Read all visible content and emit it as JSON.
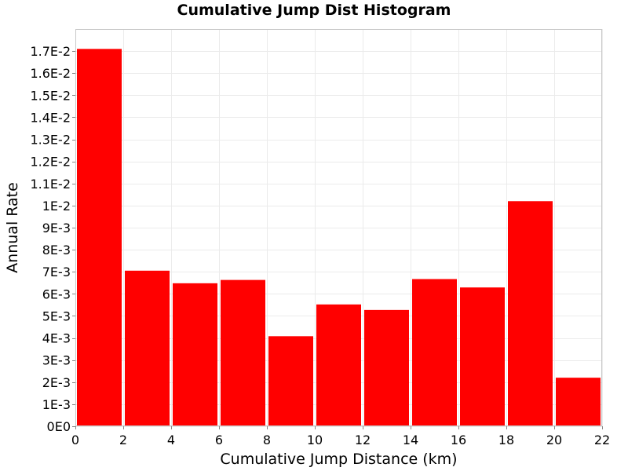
{
  "chart_data": {
    "type": "bar",
    "title": "Cumulative Jump Dist Histogram",
    "xlabel": "Cumulative Jump Distance (km)",
    "ylabel": "Annual Rate",
    "xlim": [
      0,
      22
    ],
    "ylim": [
      0,
      0.018
    ],
    "x_ticks": [
      0,
      2,
      4,
      6,
      8,
      10,
      12,
      14,
      16,
      18,
      20,
      22
    ],
    "x_tick_labels": [
      "0",
      "2",
      "4",
      "6",
      "8",
      "10",
      "12",
      "14",
      "16",
      "18",
      "20",
      "22"
    ],
    "y_ticks": [
      0,
      0.001,
      0.002,
      0.003,
      0.004,
      0.005,
      0.006,
      0.007,
      0.008,
      0.009,
      0.01,
      0.011,
      0.012,
      0.013,
      0.014,
      0.015,
      0.016,
      0.017
    ],
    "y_tick_labels": [
      "0E0",
      "1E-3",
      "2E-3",
      "3E-3",
      "4E-3",
      "5E-3",
      "6E-3",
      "7E-3",
      "8E-3",
      "9E-3",
      "1E-2",
      "1.1E-2",
      "1.2E-2",
      "1.3E-2",
      "1.4E-2",
      "1.5E-2",
      "1.6E-2",
      "1.7E-2"
    ],
    "bins": [
      {
        "x0": 0,
        "x1": 2,
        "value": 0.0171
      },
      {
        "x0": 2,
        "x1": 4,
        "value": 0.00705
      },
      {
        "x0": 4,
        "x1": 6,
        "value": 0.00648
      },
      {
        "x0": 6,
        "x1": 8,
        "value": 0.00663
      },
      {
        "x0": 8,
        "x1": 10,
        "value": 0.00408
      },
      {
        "x0": 10,
        "x1": 12,
        "value": 0.00552
      },
      {
        "x0": 12,
        "x1": 14,
        "value": 0.00527
      },
      {
        "x0": 14,
        "x1": 16,
        "value": 0.00667
      },
      {
        "x0": 16,
        "x1": 18,
        "value": 0.00629
      },
      {
        "x0": 18,
        "x1": 20,
        "value": 0.0102
      },
      {
        "x0": 20,
        "x1": 22,
        "value": 0.0022
      }
    ],
    "bar_color": "#ff0000",
    "grid": true,
    "grid_color": "#ebebeb"
  }
}
